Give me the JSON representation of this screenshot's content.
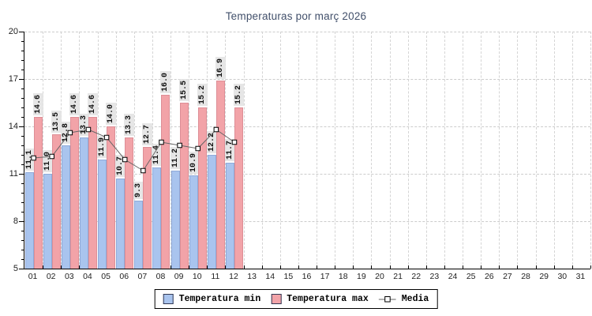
{
  "chart_data": {
    "type": "bar",
    "title": "Temperaturas por març 2026",
    "categories": [
      "01",
      "02",
      "03",
      "04",
      "05",
      "06",
      "07",
      "08",
      "09",
      "10",
      "11",
      "12",
      "13",
      "14",
      "15",
      "16",
      "17",
      "18",
      "19",
      "20",
      "21",
      "22",
      "23",
      "24",
      "25",
      "26",
      "27",
      "28",
      "29",
      "30",
      "31"
    ],
    "series": [
      {
        "name": "Temperatura min",
        "kind": "bar",
        "color": "#a9c4ee",
        "border_color": "#8fa9d8",
        "values": [
          11.1,
          11.0,
          12.8,
          13.3,
          11.9,
          10.7,
          9.3,
          11.4,
          11.2,
          10.9,
          12.2,
          11.7
        ]
      },
      {
        "name": "Temperatura max",
        "kind": "bar",
        "color": "#f2a3a8",
        "border_color": "#dd8e96",
        "values": [
          14.6,
          13.5,
          14.6,
          14.6,
          14.0,
          13.3,
          12.7,
          16.0,
          15.5,
          15.2,
          16.9,
          15.2
        ]
      },
      {
        "name": "Media",
        "kind": "line",
        "color": "#666666",
        "marker": "white-square",
        "values": [
          12.0,
          12.1,
          13.6,
          13.8,
          13.3,
          11.9,
          11.2,
          13.0,
          12.8,
          12.6,
          13.8,
          13.0
        ]
      }
    ],
    "ylim": [
      5,
      20
    ],
    "yticks": [
      5,
      8,
      11,
      14,
      17,
      20
    ],
    "y_minor_per_major": 5,
    "grid": "dashed",
    "grid_color": "#cccccc",
    "axis_color": "#000000",
    "title_color": "#42506b",
    "value_label_bg": "rgba(226,226,226,0.85)",
    "marker_fill": "#ffffff",
    "marker_border": "#000000",
    "legend_position": "bottom-center"
  }
}
